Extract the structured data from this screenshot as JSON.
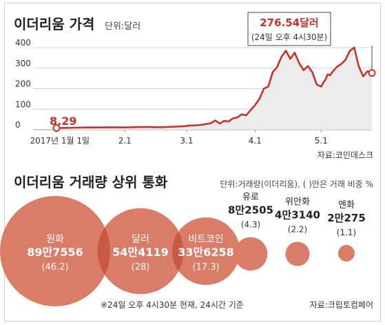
{
  "price_section": {
    "title": "이더리움 가격",
    "unit": "단위:달러",
    "start_label": "8.29",
    "end_label": "276.54달러",
    "end_note": "(24일 오후 4시30분)",
    "source": "자료:코인데스크"
  },
  "volume_section": {
    "title": "이더리움 거래량 상위 통화",
    "unit": "단위:거래량(이더리움), (  )안은 거래 비중 %",
    "footnote": "※24일 오후 4시30분 현재, 24시간 기준",
    "source": "자료:크립토컴페어"
  },
  "colors": {
    "line": "#c9302c",
    "area": "#ececec",
    "bubble": "#d97d68",
    "bubble_overlap": "#c85a44",
    "accent_text": "#c9302c"
  },
  "chart_data": [
    {
      "type": "area",
      "title": "이더리움 가격",
      "ylabel": "단위:달러",
      "ylim": [
        0,
        400
      ],
      "yticks": [
        "0",
        "100",
        "200",
        "300",
        "400"
      ],
      "x_tick_labels": [
        "2017년 1월 1일",
        "2.1",
        "3.1",
        "4.1",
        "5.1"
      ],
      "grid": true,
      "series": [
        {
          "x": [
            "2017-01-01",
            "2017-01-05",
            "2017-01-10",
            "2017-01-15",
            "2017-01-20",
            "2017-01-25",
            "2017-01-31",
            "2017-02-04",
            "2017-02-08",
            "2017-02-12",
            "2017-02-16",
            "2017-02-20",
            "2017-02-24",
            "2017-02-28",
            "2017-03-02",
            "2017-03-06",
            "2017-03-09",
            "2017-03-12",
            "2017-03-14",
            "2017-03-16",
            "2017-03-18",
            "2017-03-20",
            "2017-03-22",
            "2017-03-24",
            "2017-03-26",
            "2017-03-28",
            "2017-03-30",
            "2017-04-01",
            "2017-04-03",
            "2017-04-05",
            "2017-04-07",
            "2017-04-09",
            "2017-04-11",
            "2017-04-13",
            "2017-04-15",
            "2017-04-17",
            "2017-04-19",
            "2017-04-21",
            "2017-04-23",
            "2017-04-25",
            "2017-04-27",
            "2017-04-29",
            "2017-05-01",
            "2017-05-02",
            "2017-05-03",
            "2017-05-04",
            "2017-05-05",
            "2017-05-06",
            "2017-05-08",
            "2017-05-10",
            "2017-05-12",
            "2017-05-14",
            "2017-05-16",
            "2017-05-18",
            "2017-05-20",
            "2017-05-22",
            "2017-05-24"
          ],
          "values": [
            8.29,
            9,
            10,
            11,
            11,
            12,
            11,
            12,
            13,
            13,
            12,
            13,
            15,
            17,
            20,
            22,
            26,
            32,
            45,
            30,
            43,
            40,
            55,
            60,
            75,
            70,
            95,
            120,
            150,
            200,
            210,
            280,
            305,
            355,
            385,
            345,
            375,
            325,
            290,
            310,
            280,
            220,
            210,
            230,
            245,
            270,
            265,
            280,
            305,
            320,
            340,
            385,
            400,
            310,
            260,
            285,
            276.54
          ]
        }
      ],
      "annotations": [
        {
          "x": "2017-01-01",
          "y": 8.29,
          "text": "8.29"
        },
        {
          "x": "2017-05-24",
          "y": 276.54,
          "text": "276.54달러",
          "note": "(24일 오후 4시30분)"
        }
      ]
    },
    {
      "type": "bubble",
      "title": "이더리움 거래량 상위 통화",
      "categories": [
        "원화",
        "달러",
        "비트코인",
        "유로",
        "위안화",
        "엔화"
      ],
      "values": [
        897556,
        544119,
        336258,
        82505,
        43140,
        20275
      ],
      "value_labels": [
        "89만7556",
        "54만4119",
        "33만6258",
        "8만2505",
        "4만3140",
        "2만275"
      ],
      "shares": [
        46.2,
        28,
        17.3,
        4.3,
        2.2,
        1.1
      ],
      "share_labels": [
        "(46.2)",
        "(28)",
        "(17.3)",
        "(4.3)",
        "(2.2)",
        "(1.1)"
      ],
      "label_inside": [
        true,
        true,
        true,
        false,
        false,
        false
      ]
    }
  ]
}
